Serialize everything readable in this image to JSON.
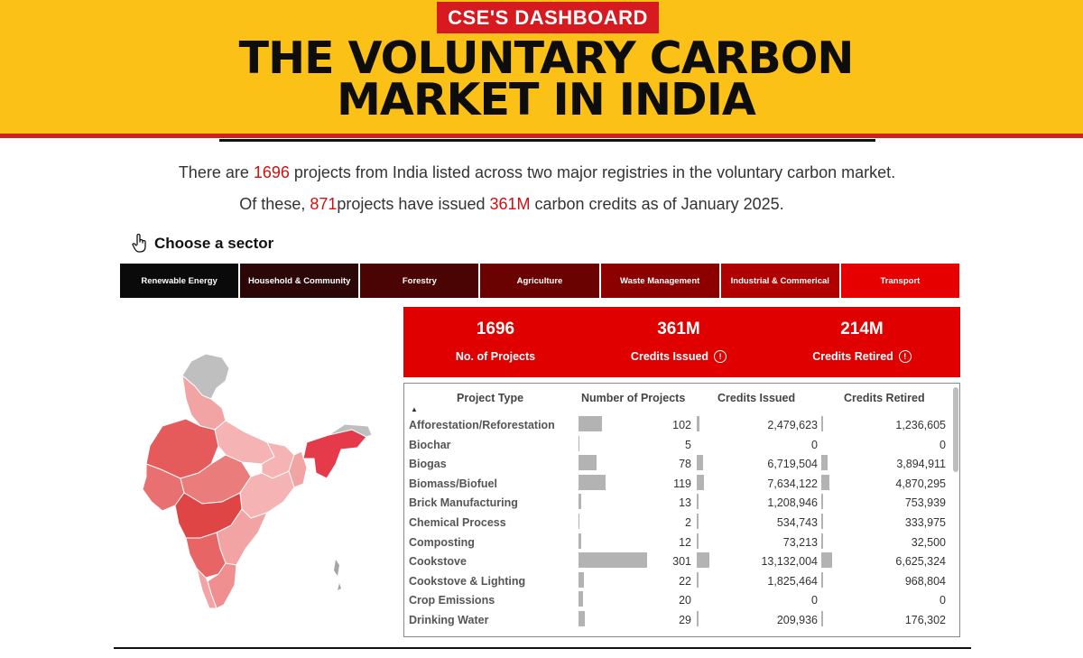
{
  "header": {
    "badge": "CSE'S DASHBOARD",
    "title_line1": "THE VOLUNTARY CARBON",
    "title_line2": "MARKET IN INDIA"
  },
  "intro": {
    "line1_pre": "There are ",
    "line1_count": "1696",
    "line1_mid": " projects from India",
    "line1_post": " listed across two major registries in the voluntary carbon market.",
    "line2_pre": "Of  these, ",
    "line2_count": "871",
    "line2_mid": "projects have issued ",
    "line2_credits": "361M",
    "line2_post": " carbon credits as of January 2025."
  },
  "choose_label": "Choose a sector",
  "sectors": [
    {
      "label": "Renewable Energy",
      "color": "#0a0a0a"
    },
    {
      "label": "Household & Community",
      "color": "#2b0707"
    },
    {
      "label": "Forestry",
      "color": "#4a0404"
    },
    {
      "label": "Agriculture",
      "color": "#6b0202"
    },
    {
      "label": "Waste Management",
      "color": "#8c0000"
    },
    {
      "label": "Industrial & Commerical",
      "color": "#b00000"
    },
    {
      "label": "Transport",
      "color": "#e60000"
    }
  ],
  "kpis": [
    {
      "value": "1696",
      "label": "No. of Projects",
      "info": false
    },
    {
      "value": "361M",
      "label": "Credits Issued",
      "info": true
    },
    {
      "value": "214M",
      "label": "Credits Retired",
      "info": true
    }
  ],
  "table": {
    "headers": [
      "Project Type",
      "Number of Projects",
      "Credits Issued",
      "Credits Retired"
    ],
    "rows": [
      {
        "type": "Afforestation/Reforestation",
        "projects": 102,
        "issued": "2,479,623",
        "retired": "1,236,605",
        "issued_n": 2479623,
        "retired_n": 1236605
      },
      {
        "type": "Biochar",
        "projects": 5,
        "issued": "0",
        "retired": "0",
        "issued_n": 0,
        "retired_n": 0
      },
      {
        "type": "Biogas",
        "projects": 78,
        "issued": "6,719,504",
        "retired": "3,894,911",
        "issued_n": 6719504,
        "retired_n": 3894911
      },
      {
        "type": "Biomass/Biofuel",
        "projects": 119,
        "issued": "7,634,122",
        "retired": "4,870,295",
        "issued_n": 7634122,
        "retired_n": 4870295
      },
      {
        "type": "Brick Manufacturing",
        "projects": 13,
        "issued": "1,208,946",
        "retired": "753,939",
        "issued_n": 1208946,
        "retired_n": 753939
      },
      {
        "type": "Chemical Process",
        "projects": 2,
        "issued": "534,743",
        "retired": "333,975",
        "issued_n": 534743,
        "retired_n": 333975
      },
      {
        "type": "Composting",
        "projects": 12,
        "issued": "73,213",
        "retired": "32,500",
        "issued_n": 73213,
        "retired_n": 32500
      },
      {
        "type": "Cookstove",
        "projects": 301,
        "issued": "13,132,004",
        "retired": "6,625,324",
        "issued_n": 13132004,
        "retired_n": 6625324
      },
      {
        "type": "Cookstove & Lighting",
        "projects": 22,
        "issued": "1,825,464",
        "retired": "968,804",
        "issued_n": 1825464,
        "retired_n": 968804
      },
      {
        "type": "Crop Emissions",
        "projects": 20,
        "issued": "0",
        "retired": "0",
        "issued_n": 0,
        "retired_n": 0
      },
      {
        "type": "Drinking Water",
        "projects": 29,
        "issued": "209,936",
        "retired": "176,302",
        "issued_n": 209936,
        "retired_n": 176302
      }
    ]
  },
  "colors": {
    "banner": "#fbc116",
    "accent_red": "#e00000",
    "bar_grey": "#b3b3b3"
  }
}
